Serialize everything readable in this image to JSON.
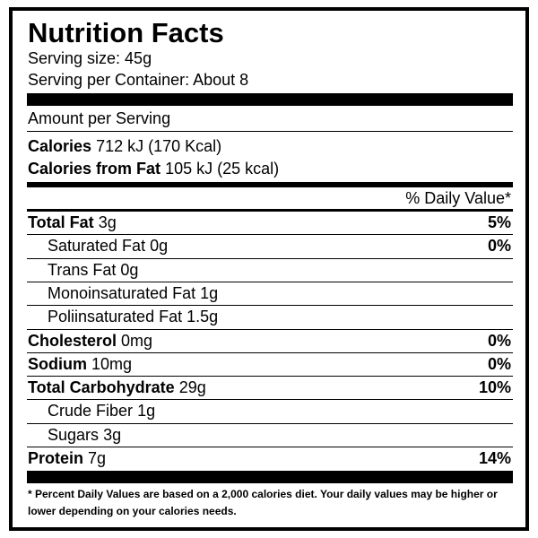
{
  "header": {
    "title": "Nutrition Facts",
    "serving_size": "Serving size: 45g",
    "servings": "Serving per Container: About 8"
  },
  "amount_per_serving": "Amount per Serving",
  "calories": {
    "label": "Calories",
    "value": "712 kJ (170 Kcal)"
  },
  "calories_from_fat": {
    "label": "Calories from Fat",
    "value": "105 kJ (25 kcal)"
  },
  "daily_value_header": "% Daily Value*",
  "rows": [
    {
      "name": "Total Fat",
      "amount": "3g",
      "dv": "5%",
      "bold": true
    },
    {
      "name": "Saturated Fat",
      "amount": "0g",
      "dv": "0%",
      "sub": true
    },
    {
      "name": "Trans Fat",
      "amount": "0g",
      "sub": true
    },
    {
      "name": "Monoinsaturated Fat",
      "amount": "1g",
      "sub": true
    },
    {
      "name": "Poliinsaturated Fat",
      "amount": "1.5g",
      "sub": true
    },
    {
      "name": "Cholesterol",
      "amount": "0mg",
      "dv": "0%",
      "bold": true
    },
    {
      "name": "Sodium",
      "amount": "10mg",
      "dv": "0%",
      "bold": true
    },
    {
      "name": "Total Carbohydrate",
      "amount": "29g",
      "dv": "10%",
      "bold": true
    },
    {
      "name": "Crude Fiber",
      "amount": "1g",
      "sub": true
    },
    {
      "name": "Sugars",
      "amount": "3g",
      "sub": true
    },
    {
      "name": "Protein",
      "amount": "7g",
      "dv": "14%",
      "bold": true
    }
  ],
  "footnote": "* Percent Daily Values are based on a 2,000 calories diet. Your daily values may be higher or lower depending on your calories needs."
}
